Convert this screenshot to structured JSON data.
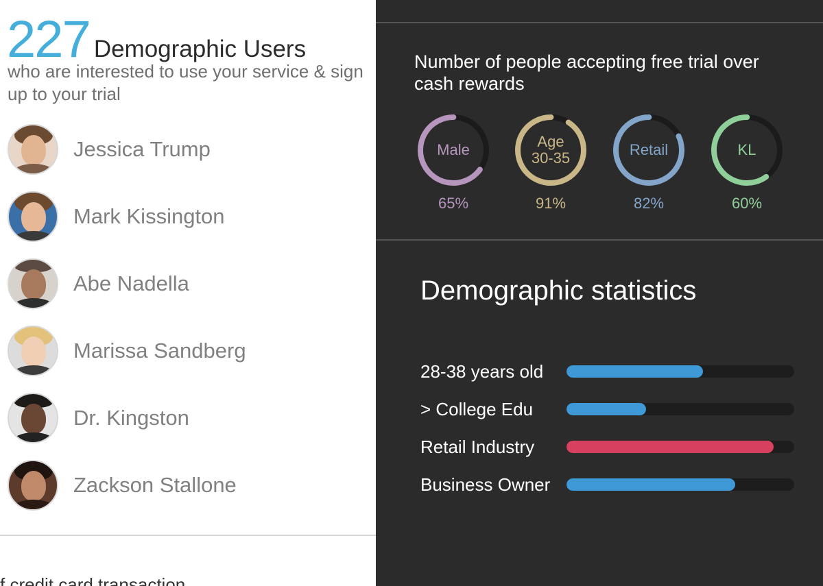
{
  "headline": {
    "count": "227",
    "label": "Demographic Users",
    "subtitle": "who are interested to use your service & sign up to your trial"
  },
  "users": [
    {
      "name": "Jessica Trump"
    },
    {
      "name": "Mark Kissington"
    },
    {
      "name": "Abe Nadella"
    },
    {
      "name": "Marissa Sandberg"
    },
    {
      "name": "Dr. Kingston"
    },
    {
      "name": "Zackson Stallone"
    }
  ],
  "footer_cut_text": "f credit card transaction",
  "trial": {
    "title": "Number of people accepting free trial over cash rewards",
    "rings": [
      {
        "label": "Male",
        "percent": "65%",
        "value": 0.65,
        "color": "#b796bd"
      },
      {
        "label": "Age 30-35",
        "percent": "91%",
        "value": 0.91,
        "color": "#c9b787"
      },
      {
        "label": "Retail",
        "percent": "82%",
        "value": 0.82,
        "color": "#82a5c9"
      },
      {
        "label": "KL",
        "percent": "60%",
        "value": 0.6,
        "color": "#8fcf9a"
      }
    ]
  },
  "stats": {
    "title": "Demographic statistics",
    "rows": [
      {
        "label": "28-38 years old",
        "value": 0.6,
        "color": "#3f99d6"
      },
      {
        "label": "> College Edu",
        "value": 0.35,
        "color": "#3f99d6"
      },
      {
        "label": "Retail Industry",
        "value": 0.91,
        "color": "#d8405f"
      },
      {
        "label": "Business Owner",
        "value": 0.74,
        "color": "#3f99d6"
      }
    ]
  }
}
